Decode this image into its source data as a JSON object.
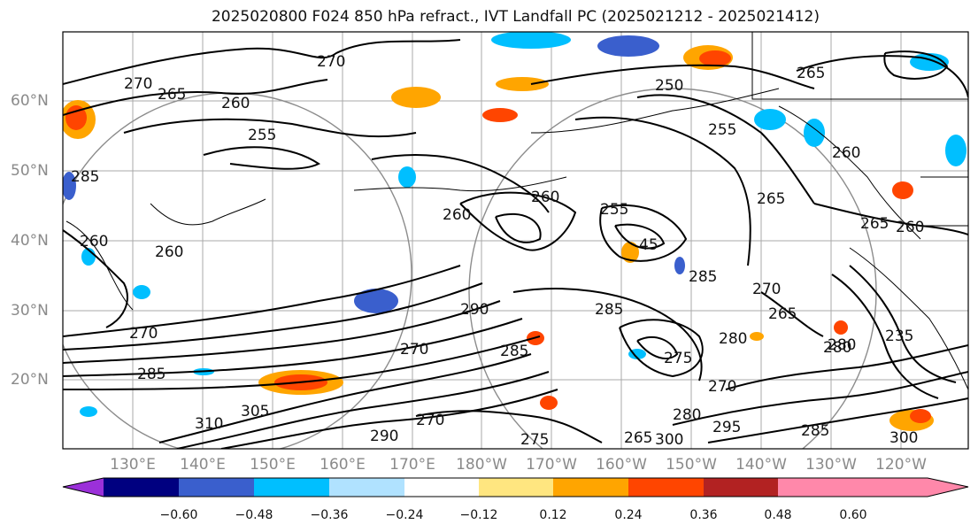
{
  "title": "2025020800 F024 850 hPa refract., IVT Landfall PC (2025021212 - 2025021412)",
  "lat_labels": [
    "60°N",
    "50°N",
    "40°N",
    "30°N",
    "20°N"
  ],
  "lon_labels": [
    "130°E",
    "140°E",
    "150°E",
    "160°E",
    "170°E",
    "180°W",
    "170°W",
    "160°W",
    "150°W",
    "140°W",
    "130°W",
    "120°W"
  ],
  "contour_labels": [
    "270",
    "265",
    "260",
    "255",
    "250",
    "270",
    "265",
    "255",
    "260",
    "265",
    "260",
    "255",
    "260",
    "260",
    "265",
    "260",
    "45",
    "285",
    "270",
    "265",
    "270",
    "285",
    "290",
    "285",
    "280",
    "270",
    "275",
    "280",
    "285",
    "300",
    "265",
    "275",
    "290",
    "270",
    "305",
    "310",
    "295",
    "280",
    "285",
    "270",
    "235",
    "280",
    "300",
    "285",
    "260"
  ],
  "colorbar": {
    "ticks": [
      "−0.60",
      "−0.48",
      "−0.36",
      "−0.24",
      "−0.12",
      "0.12",
      "0.24",
      "0.36",
      "0.48",
      "0.60"
    ],
    "colors": [
      "#9b30d9",
      "#000080",
      "#3a5fcd",
      "#00bfff",
      "#b0e2ff",
      "#ffffff",
      "#ffe680",
      "#ffa500",
      "#ff4500",
      "#b22222",
      "#ff88aa"
    ]
  }
}
